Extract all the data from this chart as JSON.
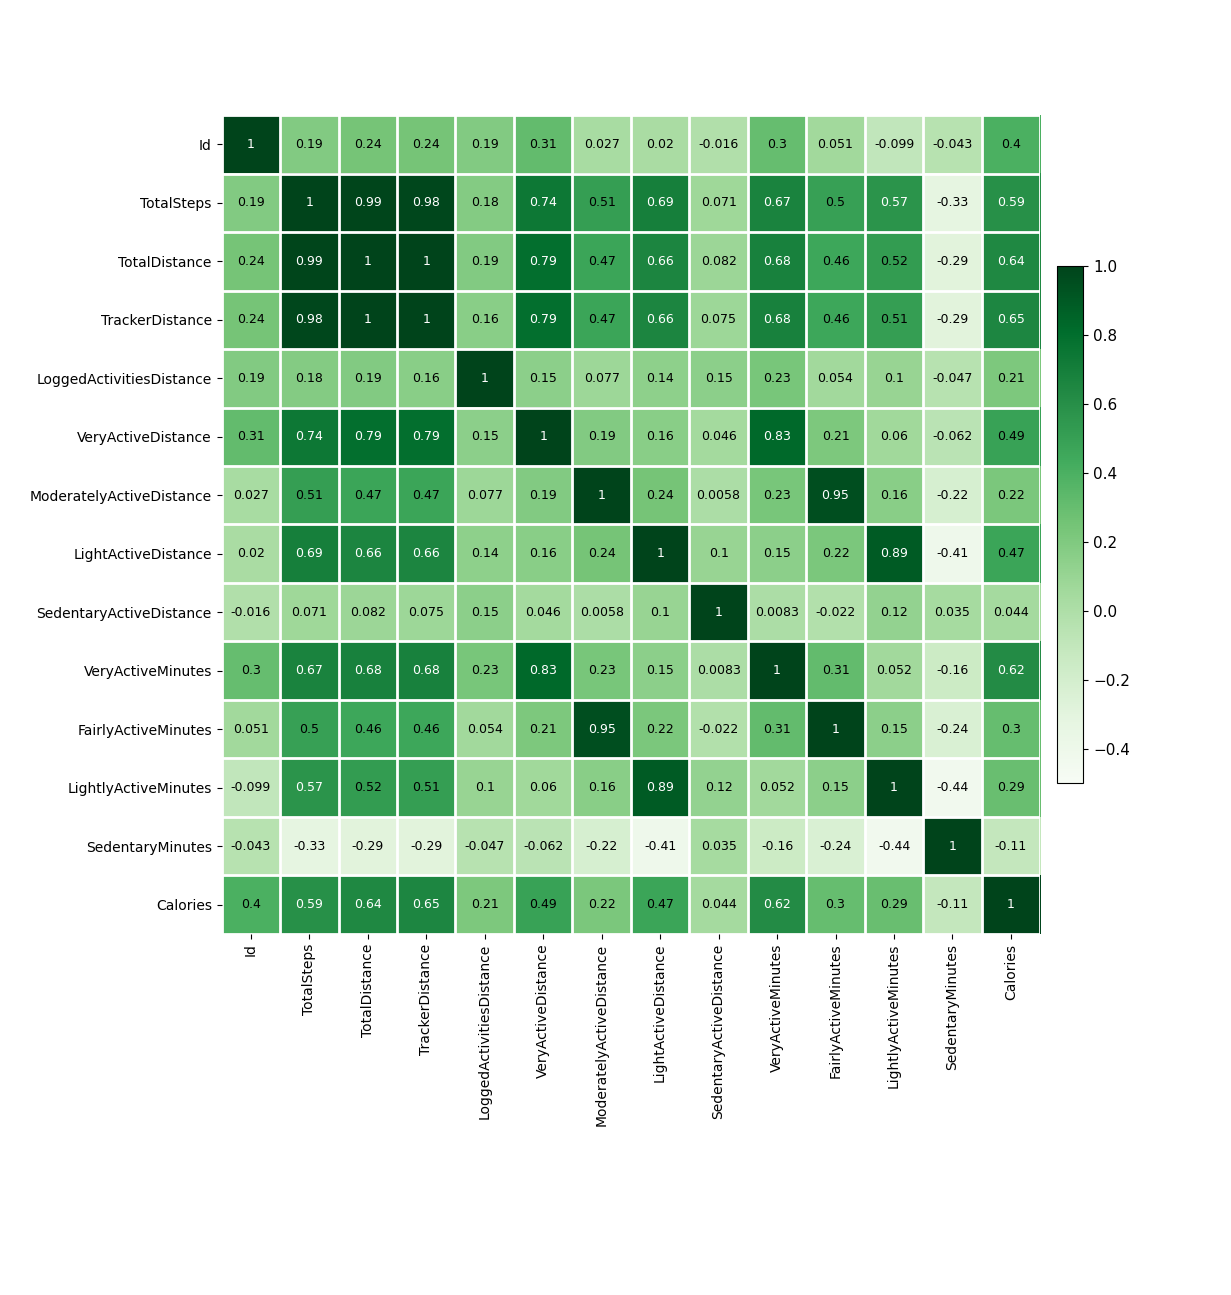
{
  "labels": [
    "Id",
    "TotalSteps",
    "TotalDistance",
    "TrackerDistance",
    "LoggedActivitiesDistance",
    "VeryActiveDistance",
    "ModeratelyActiveDistance",
    "LightActiveDistance",
    "SedentaryActiveDistance",
    "VeryActiveMinutes",
    "FairlyActiveMinutes",
    "LightlyActiveMinutes",
    "SedentaryMinutes",
    "Calories"
  ],
  "matrix": [
    [
      1,
      0.19,
      0.24,
      0.24,
      0.19,
      0.31,
      0.027,
      0.02,
      -0.016,
      0.3,
      0.051,
      -0.099,
      -0.043,
      0.4
    ],
    [
      0.19,
      1,
      0.99,
      0.98,
      0.18,
      0.74,
      0.51,
      0.69,
      0.071,
      0.67,
      0.5,
      0.57,
      -0.33,
      0.59
    ],
    [
      0.24,
      0.99,
      1,
      1,
      0.19,
      0.79,
      0.47,
      0.66,
      0.082,
      0.68,
      0.46,
      0.52,
      -0.29,
      0.64
    ],
    [
      0.24,
      0.98,
      1,
      1,
      0.16,
      0.79,
      0.47,
      0.66,
      0.075,
      0.68,
      0.46,
      0.51,
      -0.29,
      0.65
    ],
    [
      0.19,
      0.18,
      0.19,
      0.16,
      1,
      0.15,
      0.077,
      0.14,
      0.15,
      0.23,
      0.054,
      0.1,
      -0.047,
      0.21
    ],
    [
      0.31,
      0.74,
      0.79,
      0.79,
      0.15,
      1,
      0.19,
      0.16,
      0.046,
      0.83,
      0.21,
      0.06,
      -0.062,
      0.49
    ],
    [
      0.027,
      0.51,
      0.47,
      0.47,
      0.077,
      0.19,
      1,
      0.24,
      0.0058,
      0.23,
      0.95,
      0.16,
      -0.22,
      0.22
    ],
    [
      0.02,
      0.69,
      0.66,
      0.66,
      0.14,
      0.16,
      0.24,
      1,
      0.1,
      0.15,
      0.22,
      0.89,
      -0.41,
      0.47
    ],
    [
      -0.016,
      0.071,
      0.082,
      0.075,
      0.15,
      0.046,
      0.0058,
      0.1,
      1,
      0.0083,
      -0.022,
      0.12,
      0.035,
      0.044
    ],
    [
      0.3,
      0.67,
      0.68,
      0.68,
      0.23,
      0.83,
      0.23,
      0.15,
      0.0083,
      1,
      0.31,
      0.052,
      -0.16,
      0.62
    ],
    [
      0.051,
      0.5,
      0.46,
      0.46,
      0.054,
      0.21,
      0.95,
      0.22,
      -0.022,
      0.31,
      1,
      0.15,
      -0.24,
      0.3
    ],
    [
      -0.099,
      0.57,
      0.52,
      0.51,
      0.1,
      0.06,
      0.16,
      0.89,
      0.12,
      0.052,
      0.15,
      1,
      -0.44,
      0.29
    ],
    [
      -0.043,
      -0.33,
      -0.29,
      -0.29,
      -0.047,
      -0.062,
      -0.22,
      -0.41,
      0.035,
      -0.16,
      -0.24,
      -0.44,
      1,
      -0.11
    ],
    [
      0.4,
      0.59,
      0.64,
      0.65,
      0.21,
      0.49,
      0.22,
      0.47,
      0.044,
      0.62,
      0.3,
      0.29,
      -0.11,
      1
    ]
  ],
  "vmin": -0.5,
  "vmax": 1.0,
  "cmap": "Greens",
  "figsize": [
    12.31,
    12.95
  ],
  "dpi": 100,
  "colorbar_ticks": [
    1.0,
    0.8,
    0.6,
    0.4,
    0.2,
    0.0,
    -0.2,
    -0.4
  ],
  "annotation_fontsize": 9,
  "label_fontsize": 10,
  "colorbar_fontsize": 11,
  "luminance_threshold": 0.45
}
